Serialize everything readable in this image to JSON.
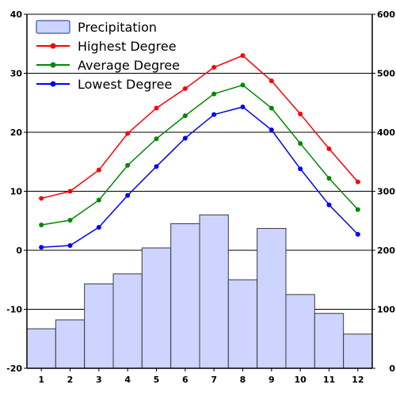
{
  "chart_data": {
    "type": "bar+line",
    "categories": [
      "1",
      "2",
      "3",
      "4",
      "5",
      "6",
      "7",
      "8",
      "9",
      "10",
      "11",
      "12"
    ],
    "precipitation": {
      "name": "Precipitation",
      "color": "#ccd4ff",
      "stroke": "#3b3b3b",
      "axis": "right",
      "values": [
        67,
        82,
        143,
        160,
        204,
        245,
        260,
        150,
        237,
        125,
        93,
        58
      ]
    },
    "lines": [
      {
        "name": "Highest Degree",
        "color": "#ff0000",
        "values": [
          8.8,
          10.0,
          13.6,
          19.8,
          24.1,
          27.4,
          31.0,
          33.0,
          28.7,
          23.1,
          17.2,
          11.6
        ]
      },
      {
        "name": "Average Degree",
        "color": "#008800",
        "values": [
          4.3,
          5.1,
          8.5,
          14.4,
          18.9,
          22.8,
          26.5,
          28.0,
          24.1,
          18.1,
          12.2,
          6.9
        ]
      },
      {
        "name": "Lowest Degree",
        "color": "#0000ff",
        "values": [
          0.5,
          0.8,
          3.9,
          9.3,
          14.2,
          19.0,
          23.0,
          24.3,
          20.4,
          13.8,
          7.7,
          2.7
        ]
      }
    ],
    "left_axis": {
      "min": -20,
      "max": 40,
      "ticks": [
        "-20",
        "-10",
        "0",
        "10",
        "20",
        "30",
        "40"
      ]
    },
    "right_axis": {
      "min": 0,
      "max": 600,
      "ticks": [
        "0",
        "100",
        "200",
        "300",
        "400",
        "500",
        "600"
      ]
    },
    "grid": "horizontal",
    "legend_position": "top-left",
    "legend": [
      "Precipitation",
      "Highest Degree",
      "Average Degree",
      "Lowest Degree"
    ]
  }
}
